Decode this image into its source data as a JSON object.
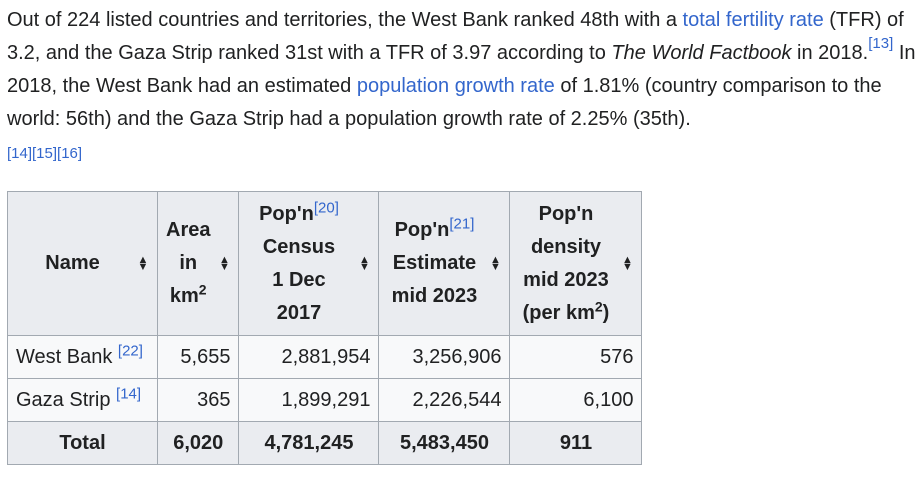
{
  "paragraph": {
    "p1": "Out of 224 listed countries and territories, the West Bank ranked 48th with a ",
    "link_tfr": "total fertility rate",
    "p2": " (TFR) of 3.2, and the Gaza Strip ranked 31st with a TFR of 3.97 according to ",
    "book": "The World Factbook",
    "p3": " in 2018.",
    "ref13": "[13]",
    "p4": " In 2018, the West Bank had an estimated ",
    "link_pgr": "population growth rate",
    "p5": " of 1.81% (country comparison to the world: 56th) and the Gaza Strip had a population growth rate of 2.25% (35th).",
    "refs_end": "[14][15][16]"
  },
  "table": {
    "headers": {
      "name": "Name",
      "area_l1": "Area",
      "area_l2": "in",
      "area_l3": "km",
      "area_sup": "2",
      "census_l1": "Pop'n",
      "census_ref": "[20]",
      "census_l2": "Census",
      "census_l3": "1 Dec 2017",
      "estimate_l1": "Pop'n",
      "estimate_ref": "[21]",
      "estimate_l2": "Estimate",
      "estimate_l3": "mid 2023",
      "density_l1": "Pop'n",
      "density_l2": "density",
      "density_l3": "mid 2023",
      "density_l4": "(per km",
      "density_sup": "2",
      "density_l4_end": ")"
    },
    "rows": [
      {
        "name": "West Bank",
        "ref": "[22]",
        "area": "5,655",
        "census": "2,881,954",
        "estimate": "3,256,906",
        "density": "576"
      },
      {
        "name": "Gaza Strip",
        "ref": "[14]",
        "area": "365",
        "census": "1,899,291",
        "estimate": "2,226,544",
        "density": "6,100"
      }
    ],
    "total": {
      "name": "Total",
      "area": "6,020",
      "census": "4,781,245",
      "estimate": "5,483,450",
      "density": "911"
    }
  },
  "colors": {
    "link": "#3366cc",
    "header_bg": "#eaecf0",
    "border": "#a2a9b1"
  }
}
